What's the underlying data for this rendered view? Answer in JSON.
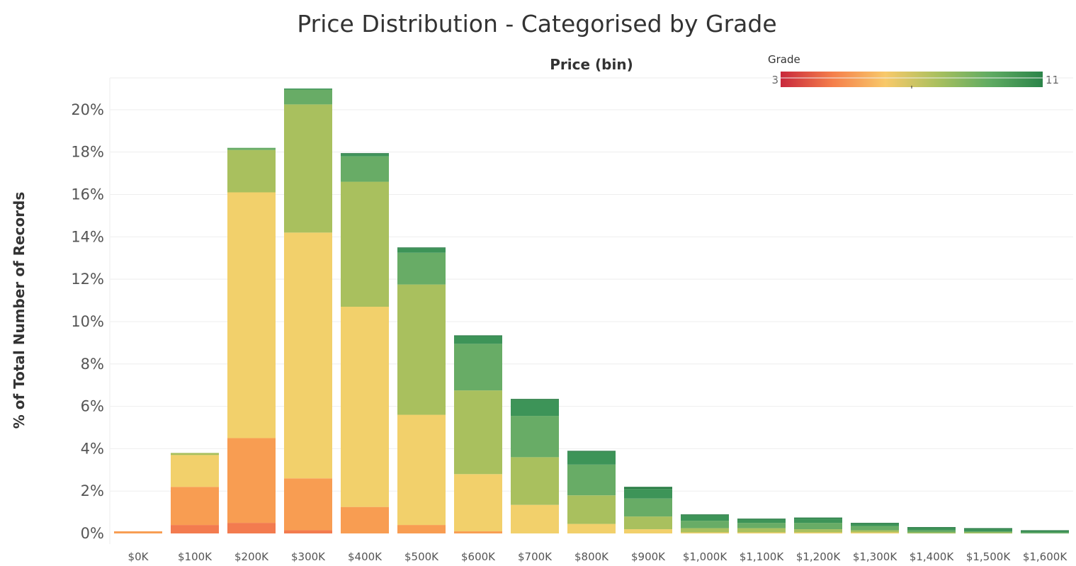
{
  "chart_data": {
    "type": "bar",
    "stacked": true,
    "title": "Price Distribution - Categorised by Grade",
    "column_header": "Price (bin)",
    "ylabel": "% of Total Number of Records",
    "ylim": [
      -0.5,
      21.5
    ],
    "yticks": [
      0,
      2,
      4,
      6,
      8,
      10,
      12,
      14,
      16,
      18,
      20
    ],
    "ytick_labels": [
      "0%",
      "2%",
      "4%",
      "6%",
      "8%",
      "10%",
      "12%",
      "14%",
      "16%",
      "18%",
      "20%"
    ],
    "grid": true,
    "categories": [
      "$0K",
      "$100K",
      "$200K",
      "$300K",
      "$400K",
      "$500K",
      "$600K",
      "$700K",
      "$800K",
      "$900K",
      "$1,000K",
      "$1,100K",
      "$1,200K",
      "$1,300K",
      "$1,400K",
      "$1,500K",
      "$1,600K"
    ],
    "legend": {
      "title": "Grade",
      "min_label": "3",
      "max_label": "11",
      "placement": "top-right",
      "gradient": [
        "#c8283c",
        "#f57f4b",
        "#f8c96a",
        "#a9c05e",
        "#5fab62",
        "#2b8449"
      ]
    },
    "series": [
      {
        "grade": 5,
        "color": "#f37b4f",
        "values": [
          0,
          0.4,
          0.5,
          0.15,
          0,
          0,
          0,
          0,
          0,
          0,
          0,
          0,
          0,
          0,
          0,
          0,
          0
        ]
      },
      {
        "grade": 6,
        "color": "#f89d52",
        "values": [
          0.1,
          1.8,
          4.0,
          2.45,
          1.25,
          0.4,
          0.1,
          0,
          0,
          0,
          0,
          0,
          0,
          0,
          0,
          0,
          0
        ]
      },
      {
        "grade": 7,
        "color": "#f2d06b",
        "values": [
          0,
          1.5,
          11.6,
          11.6,
          9.45,
          5.2,
          2.7,
          1.35,
          0.45,
          0.2,
          0.05,
          0.05,
          0.05,
          0.05,
          0,
          0,
          0
        ]
      },
      {
        "grade": 8,
        "color": "#a9c05e",
        "values": [
          0,
          0.1,
          2.0,
          6.05,
          5.9,
          6.15,
          3.95,
          2.25,
          1.35,
          0.6,
          0.2,
          0.2,
          0.15,
          0.1,
          0.05,
          0.05,
          0
        ]
      },
      {
        "grade": 9,
        "color": "#68ac66",
        "values": [
          0,
          0,
          0.1,
          0.7,
          1.2,
          1.5,
          2.2,
          1.95,
          1.45,
          0.85,
          0.35,
          0.25,
          0.3,
          0.2,
          0.1,
          0.05,
          0.05
        ]
      },
      {
        "grade": 10,
        "color": "#3d9458",
        "values": [
          0,
          0,
          0,
          0.05,
          0.1,
          0.2,
          0.35,
          0.75,
          0.6,
          0.45,
          0.25,
          0.15,
          0.2,
          0.1,
          0.1,
          0.1,
          0.05
        ]
      },
      {
        "grade": 11,
        "color": "#2a7d45",
        "values": [
          0,
          0,
          0,
          0,
          0.05,
          0.05,
          0.05,
          0.05,
          0.05,
          0.1,
          0.05,
          0.05,
          0.05,
          0.05,
          0.05,
          0.05,
          0.05
        ]
      }
    ]
  }
}
